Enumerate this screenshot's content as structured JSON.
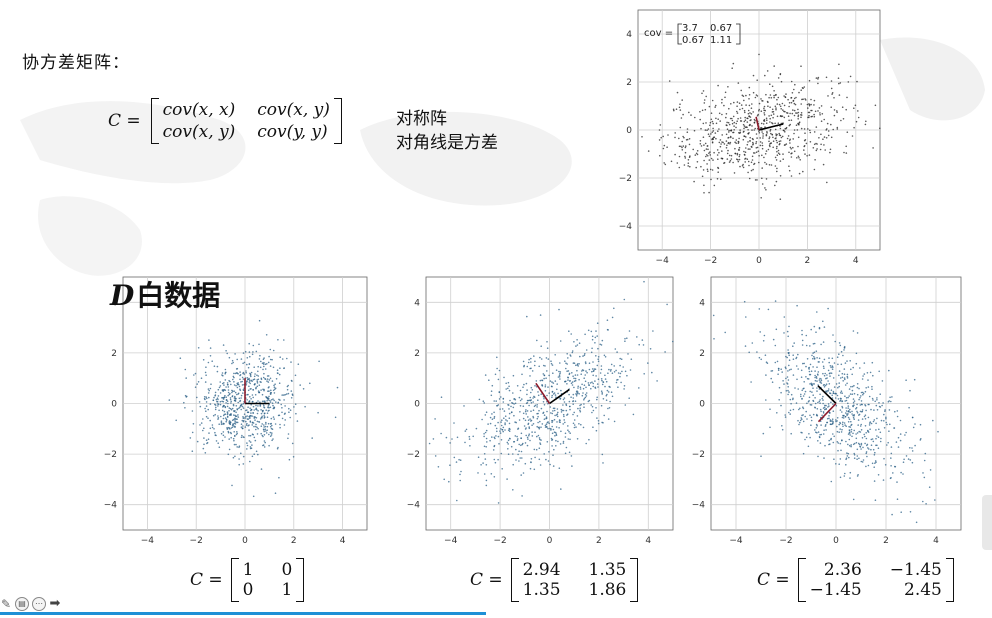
{
  "slide": {
    "title": "协方差矩阵：",
    "formula": {
      "lhs": "C =",
      "cells": [
        "cov(x, x)",
        "cov(x, y)",
        "cov(x, y)",
        "cov(y, y)"
      ]
    },
    "properties": [
      "对称阵",
      "对角线是方差"
    ],
    "white_label_symbol": "D",
    "white_label_text": "白数据"
  },
  "matrices": [
    {
      "lhs": "C =",
      "cells": [
        "1",
        "0",
        "0",
        "1"
      ]
    },
    {
      "lhs": "C =",
      "cells": [
        "2.94",
        "1.35",
        "1.35",
        "1.86"
      ]
    },
    {
      "lhs": "C =",
      "cells": [
        "2.36",
        "−1.45",
        "−1.45",
        "2.45"
      ]
    }
  ],
  "chart_data": [
    {
      "type": "scatter",
      "id": "top",
      "title": "",
      "xlabel": "",
      "ylabel": "",
      "xlim": [
        -5,
        5
      ],
      "ylim": [
        -5,
        5
      ],
      "xticks": [
        -4,
        -2,
        0,
        2,
        4
      ],
      "yticks": [
        -4,
        -2,
        0,
        2,
        4
      ],
      "grid": true,
      "cov": [
        [
          3.7,
          0.67
        ],
        [
          0.67,
          1.11
        ]
      ],
      "annotation": {
        "label": "cov =",
        "values": [
          "3.7",
          "0.67",
          "0.67",
          "1.11"
        ],
        "placement": "top-left"
      },
      "eigenvectors": [
        {
          "dx": 1.0,
          "dy": 0.25,
          "color": "#000000"
        },
        {
          "dx": -0.12,
          "dy": 0.55,
          "color": "#8b1a2b"
        }
      ],
      "n_points": 800,
      "color": "#222222"
    },
    {
      "type": "scatter",
      "id": "white",
      "xlim": [
        -5,
        5
      ],
      "ylim": [
        -5,
        5
      ],
      "xticks": [
        -4,
        -2,
        0,
        2,
        4
      ],
      "yticks": [
        -4,
        -2,
        0,
        2,
        4
      ],
      "grid": true,
      "cov": [
        [
          1,
          0
        ],
        [
          0,
          1
        ]
      ],
      "eigenvectors": [
        {
          "dx": 1.0,
          "dy": 0.0,
          "color": "#000000"
        },
        {
          "dx": 0.0,
          "dy": 1.0,
          "color": "#8b1a2b"
        }
      ],
      "n_points": 800,
      "color": "#2a5f86"
    },
    {
      "type": "scatter",
      "id": "stretched",
      "xlim": [
        -5,
        5
      ],
      "ylim": [
        -5,
        5
      ],
      "xticks": [
        -4,
        -2,
        0,
        2,
        4
      ],
      "yticks": [
        -4,
        -2,
        0,
        2,
        4
      ],
      "grid": true,
      "cov": [
        [
          2.94,
          1.35
        ],
        [
          1.35,
          1.86
        ]
      ],
      "eigenvectors": [
        {
          "dx": 0.8,
          "dy": 0.55,
          "color": "#000000"
        },
        {
          "dx": -0.55,
          "dy": 0.8,
          "color": "#8b1a2b"
        }
      ],
      "n_points": 800,
      "color": "#2a5f86"
    },
    {
      "type": "scatter",
      "id": "rotated",
      "xlim": [
        -5,
        5
      ],
      "ylim": [
        -5,
        5
      ],
      "xticks": [
        -4,
        -2,
        0,
        2,
        4
      ],
      "yticks": [
        -4,
        -2,
        0,
        2,
        4
      ],
      "grid": true,
      "cov": [
        [
          2.36,
          -1.45
        ],
        [
          -1.45,
          2.45
        ]
      ],
      "eigenvectors": [
        {
          "dx": -0.72,
          "dy": 0.7,
          "color": "#000000"
        },
        {
          "dx": -0.7,
          "dy": -0.72,
          "color": "#8b1a2b"
        }
      ],
      "n_points": 800,
      "color": "#2a5f86"
    }
  ],
  "toolbar": {
    "icons": [
      "pen-icon",
      "slides-icon",
      "more-icon",
      "next-arrow-icon"
    ],
    "progress": 0.49,
    "accent": "#1e90d6"
  }
}
